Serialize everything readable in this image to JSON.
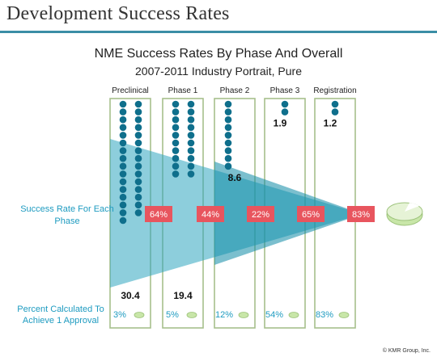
{
  "header": {
    "title": "Development Success Rates"
  },
  "footer": {
    "credit": "© KMR Group, Inc."
  },
  "labels": {
    "success_rate": "Success Rate For Each Phase",
    "percent_calc": "Percent Calculated To Achieve 1 Approval"
  },
  "colors": {
    "accent": "#1e9bc0",
    "dot": "#0f6f8c",
    "badge": "#e8555e",
    "pill": "#c8e6a8",
    "cone": "#2fa5bf"
  },
  "chart_data": {
    "type": "bar",
    "title": "NME Success Rates By Phase And Overall",
    "subtitle": "2007-2011 Industry Portrait, Pure",
    "categories": [
      "Preclinical",
      "Phase 1",
      "Phase 2",
      "Phase 3",
      "Registration"
    ],
    "compounds_per_approval": [
      30.4,
      19.4,
      8.6,
      1.9,
      1.2
    ],
    "compounds_labels": [
      "30.4",
      "19.4",
      "8.6",
      "1.9",
      "1.2"
    ],
    "phase_success_rates": [
      "64%",
      "44%",
      "22%",
      "65%",
      "83%"
    ],
    "percent_to_approval": [
      "3%",
      "5%",
      "12%",
      "54%",
      "83%"
    ]
  }
}
